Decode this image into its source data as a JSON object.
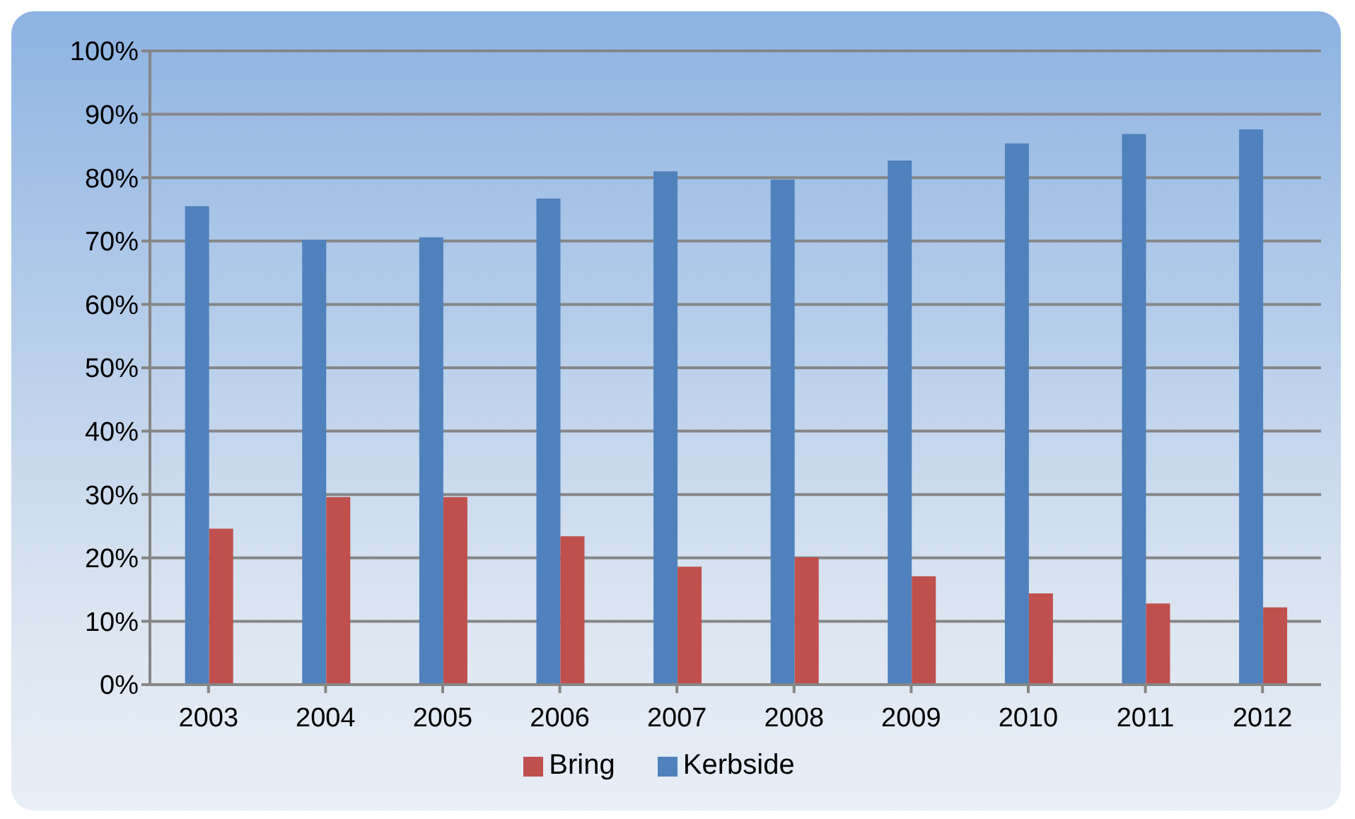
{
  "chart_data": {
    "type": "bar",
    "categories": [
      "2003",
      "2004",
      "2005",
      "2006",
      "2007",
      "2008",
      "2009",
      "2010",
      "2011",
      "2012"
    ],
    "series": [
      {
        "name": "Kerbside",
        "color": "#4f81bd",
        "values": [
          75.5,
          70.2,
          70.6,
          76.7,
          81.0,
          79.7,
          82.7,
          85.4,
          86.9,
          87.6
        ]
      },
      {
        "name": "Bring",
        "color": "#c0504d",
        "values": [
          24.6,
          29.6,
          29.6,
          23.4,
          18.6,
          20.1,
          17.1,
          14.4,
          12.8,
          12.2
        ]
      }
    ],
    "ylim": [
      0,
      100
    ],
    "yticks": [
      {
        "value": 0,
        "label": "0%"
      },
      {
        "value": 10,
        "label": "10%"
      },
      {
        "value": 20,
        "label": "20%"
      },
      {
        "value": 30,
        "label": "30%"
      },
      {
        "value": 40,
        "label": "40%"
      },
      {
        "value": 50,
        "label": "50%"
      },
      {
        "value": 60,
        "label": "60%"
      },
      {
        "value": 70,
        "label": "70%"
      },
      {
        "value": 80,
        "label": "80%"
      },
      {
        "value": 90,
        "label": "90%"
      },
      {
        "value": 100,
        "label": "100%"
      }
    ],
    "grid": "y",
    "legend": "bottom"
  }
}
